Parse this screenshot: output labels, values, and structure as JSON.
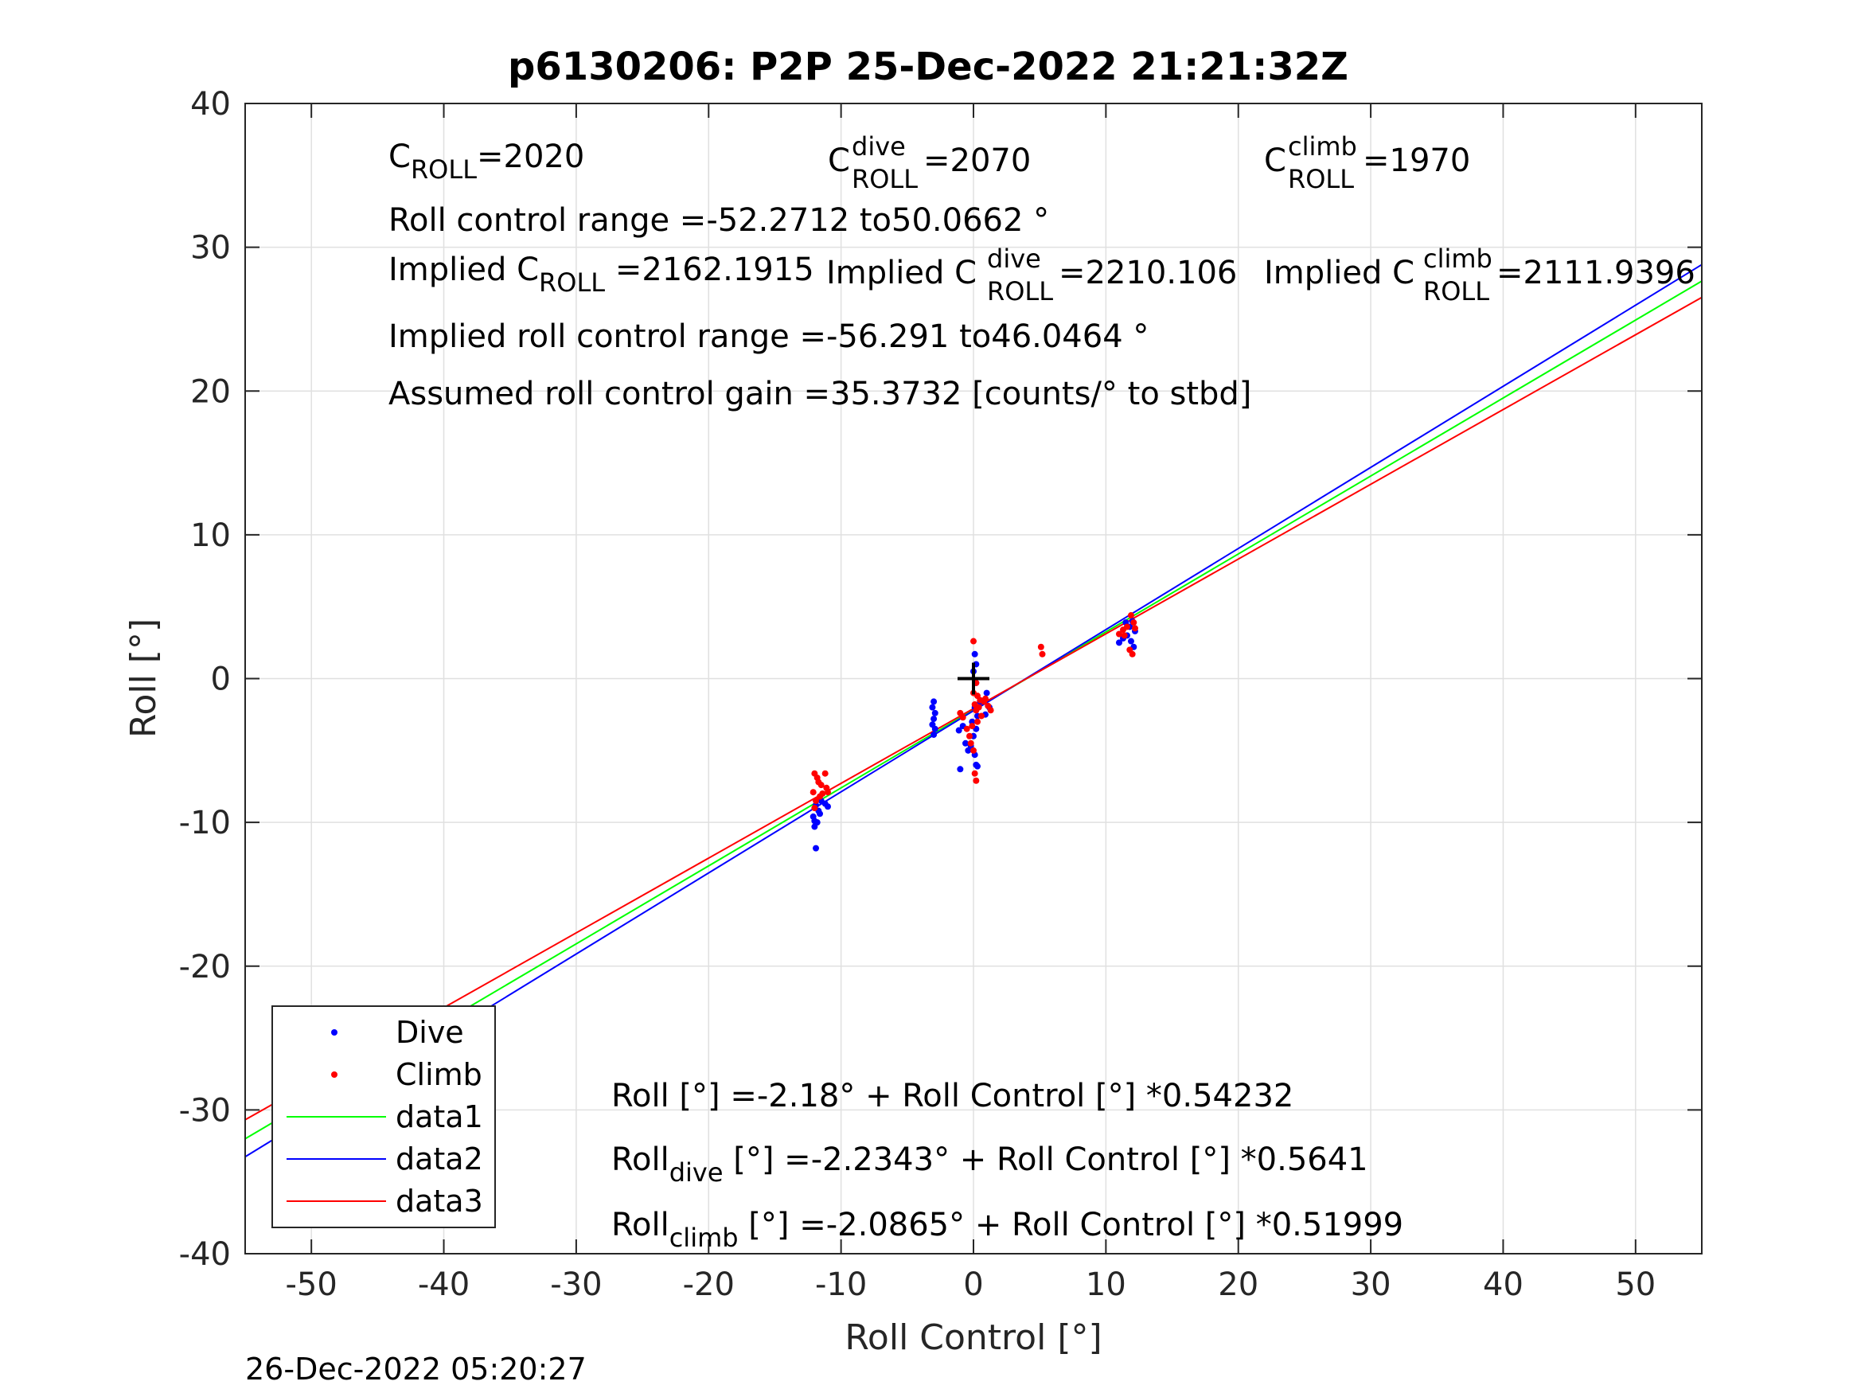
{
  "chart_data": {
    "type": "scatter",
    "title": "p6130206: P2P 25-Dec-2022 21:21:32Z",
    "xlabel": "Roll Control [°]",
    "ylabel": "Roll [°]",
    "xlim": [
      -55,
      55
    ],
    "ylim": [
      -40,
      40
    ],
    "x_ticks": [
      -50,
      -40,
      -30,
      -20,
      -10,
      0,
      10,
      20,
      30,
      40,
      50
    ],
    "y_ticks": [
      -40,
      -30,
      -20,
      -10,
      0,
      10,
      20,
      30,
      40
    ],
    "grid": true,
    "legend_placement": "bottom-left",
    "footer": "26-Dec-2022 05:20:27",
    "annotations": {
      "c_roll": {
        "base": "C",
        "sub": "ROLL",
        "text": "=2020"
      },
      "c_dive": {
        "base": "C",
        "sup": "dive",
        "sub": "ROLL",
        "text": " =2070"
      },
      "c_climb": {
        "base": "C",
        "sup": "climb",
        "sub": "ROLL",
        "text": " =1970"
      },
      "range": "Roll control range =-52.2712 to50.0662 °",
      "implied_c": {
        "base": "Implied C",
        "sub": "ROLL",
        "text": " =2162.1915"
      },
      "implied_dive": {
        "base": "Implied C",
        "sup": "dive",
        "sub": "ROLL",
        "text": " =2210.106"
      },
      "implied_climb": {
        "base": "Implied C",
        "sup": "climb",
        "sub": "ROLL",
        "text": " =2111.9396"
      },
      "implied_range": "Implied roll control range =-56.291 to46.0464 °",
      "gain": "Assumed roll control gain =35.3732 [counts/° to stbd]",
      "fit_all": "Roll [°] =-2.18° + Roll Control [°] *0.54232",
      "fit_dive": {
        "base": "Roll",
        "sub": "dive",
        "text": " [°] =-2.2343° + Roll Control [°] *0.5641"
      },
      "fit_climb": {
        "base": "Roll",
        "sub": "climb",
        "text": " [°] =-2.0865° + Roll Control [°] *0.51999"
      }
    },
    "series": [
      {
        "name": "Dive",
        "kind": "points",
        "color": "#0000ff",
        "points": [
          [
            -11.9,
            -11.8
          ],
          [
            -12.0,
            -10.3
          ],
          [
            -11.8,
            -10.0
          ],
          [
            -12.1,
            -9.6
          ],
          [
            -11.7,
            -9.2
          ],
          [
            -11.9,
            -8.8
          ],
          [
            -11.5,
            -8.5
          ],
          [
            -11.2,
            -8.7
          ],
          [
            -11.0,
            -8.9
          ],
          [
            -12.0,
            -9.9
          ],
          [
            -11.6,
            -9.4
          ],
          [
            -3.0,
            -1.6
          ],
          [
            -3.1,
            -2.0
          ],
          [
            -2.9,
            -2.4
          ],
          [
            -3.0,
            -2.8
          ],
          [
            -3.1,
            -3.2
          ],
          [
            -2.9,
            -3.5
          ],
          [
            -3.0,
            -3.9
          ],
          [
            -1.0,
            -6.3
          ],
          [
            -0.6,
            -4.5
          ],
          [
            -0.4,
            -5.0
          ],
          [
            -0.2,
            -4.7
          ],
          [
            0.1,
            -5.3
          ],
          [
            0.3,
            -6.1
          ],
          [
            0.2,
            -6.0
          ],
          [
            0.1,
            1.7
          ],
          [
            0.2,
            1.0
          ],
          [
            0.0,
            0.5
          ],
          [
            0.2,
            -0.3
          ],
          [
            0.1,
            -2.0
          ],
          [
            -0.1,
            -3.0
          ],
          [
            0.2,
            -3.5
          ],
          [
            0.3,
            -2.6
          ],
          [
            0.5,
            -1.6
          ],
          [
            1.0,
            -1.0
          ],
          [
            1.2,
            -2.0
          ],
          [
            0.9,
            -2.5
          ],
          [
            -0.8,
            -3.3
          ],
          [
            -1.1,
            -3.6
          ],
          [
            0.0,
            -4.0
          ],
          [
            11.0,
            2.5
          ],
          [
            11.3,
            2.8
          ],
          [
            11.6,
            3.0
          ],
          [
            11.8,
            3.6
          ],
          [
            12.0,
            4.0
          ],
          [
            12.2,
            3.3
          ],
          [
            11.9,
            2.6
          ],
          [
            11.5,
            3.9
          ],
          [
            12.1,
            2.2
          ]
        ]
      },
      {
        "name": "Climb",
        "kind": "points",
        "color": "#ff0000",
        "points": [
          [
            -12.0,
            -6.6
          ],
          [
            -11.8,
            -6.9
          ],
          [
            -11.5,
            -7.4
          ],
          [
            -11.2,
            -6.6
          ],
          [
            -11.0,
            -7.9
          ],
          [
            -11.6,
            -8.2
          ],
          [
            -11.9,
            -8.5
          ],
          [
            -12.0,
            -9.0
          ],
          [
            -11.4,
            -8.0
          ],
          [
            -11.1,
            -7.6
          ],
          [
            -11.7,
            -7.2
          ],
          [
            -12.1,
            -7.9
          ],
          [
            -1.0,
            -2.4
          ],
          [
            -0.8,
            -2.7
          ],
          [
            -0.5,
            -3.5
          ],
          [
            -0.3,
            -4.0
          ],
          [
            -0.2,
            -4.5
          ],
          [
            0.0,
            -5.0
          ],
          [
            0.1,
            -6.6
          ],
          [
            0.2,
            -7.1
          ],
          [
            0.0,
            2.6
          ],
          [
            0.2,
            -0.3
          ],
          [
            0.3,
            -1.2
          ],
          [
            0.1,
            -1.8
          ],
          [
            0.4,
            -2.0
          ],
          [
            0.6,
            -2.6
          ],
          [
            0.3,
            -3.0
          ],
          [
            -0.1,
            -3.3
          ],
          [
            0.2,
            -2.2
          ],
          [
            0.5,
            -1.5
          ],
          [
            0.8,
            -1.6
          ],
          [
            1.1,
            -1.9
          ],
          [
            1.3,
            -2.2
          ],
          [
            0.9,
            -1.4
          ],
          [
            0.0,
            -1.0
          ],
          [
            5.1,
            2.2
          ],
          [
            5.2,
            1.7
          ],
          [
            11.0,
            3.1
          ],
          [
            11.3,
            3.4
          ],
          [
            11.6,
            3.6
          ],
          [
            11.9,
            4.4
          ],
          [
            12.1,
            3.9
          ],
          [
            11.8,
            2.0
          ],
          [
            12.0,
            1.7
          ],
          [
            11.4,
            3.0
          ],
          [
            12.2,
            3.5
          ]
        ]
      },
      {
        "name": "data1",
        "kind": "line",
        "color": "#00ff00",
        "intercept": -2.18,
        "slope": 0.54232
      },
      {
        "name": "data2",
        "kind": "line",
        "color": "#0000ff",
        "intercept": -2.2343,
        "slope": 0.5641
      },
      {
        "name": "data3",
        "kind": "line",
        "color": "#ff0000",
        "intercept": -2.0865,
        "slope": 0.51999
      }
    ],
    "center_marker": {
      "x": 0,
      "y": 0,
      "symbol": "+",
      "color": "#000000"
    }
  }
}
